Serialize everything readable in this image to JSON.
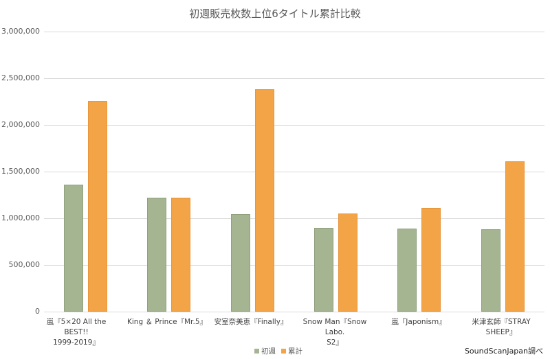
{
  "chart_data": {
    "type": "bar",
    "title": "初週販売枚数上位6タイトル累計比較",
    "xlabel": "",
    "ylabel": "",
    "ylim": [
      0,
      3000000
    ],
    "yticks": [
      "0",
      "500,000",
      "1,000,000",
      "1,500,000",
      "2,000,000",
      "2,500,000",
      "3,000,000"
    ],
    "grid": true,
    "legend_position": "bottom",
    "categories": [
      "嵐『5×20 All the BEST!! 1999-2019』",
      "King ＆ Prince『Mr.5』",
      "安室奈美恵『Finally』",
      "Snow Man『Snow Labo. S2』",
      "嵐『Japonism』",
      "米津玄師『STRAY SHEEP』"
    ],
    "series": [
      {
        "name": "初週",
        "color": "#a5b592",
        "values": [
          1360000,
          1220000,
          1044000,
          897000,
          890000,
          882000
        ]
      },
      {
        "name": "累計",
        "color": "#f3a447",
        "values": [
          2257000,
          1220000,
          2382000,
          1052000,
          1110000,
          1610000
        ]
      }
    ],
    "annotations": [
      "SoundScanJapan調べ"
    ]
  },
  "labels": {
    "cat0_line1": "嵐『5×20 All the BEST!!",
    "cat0_line2": "1999-2019』",
    "cat1_line1": "King ＆ Prince『Mr.5』",
    "cat2_line1": "安室奈美恵『Finally』",
    "cat3_line1": "Snow Man『Snow Labo.",
    "cat3_line2": "S2』",
    "cat4_line1": "嵐『Japonism』",
    "cat5_line1": "米津玄師『STRAY SHEEP』"
  }
}
